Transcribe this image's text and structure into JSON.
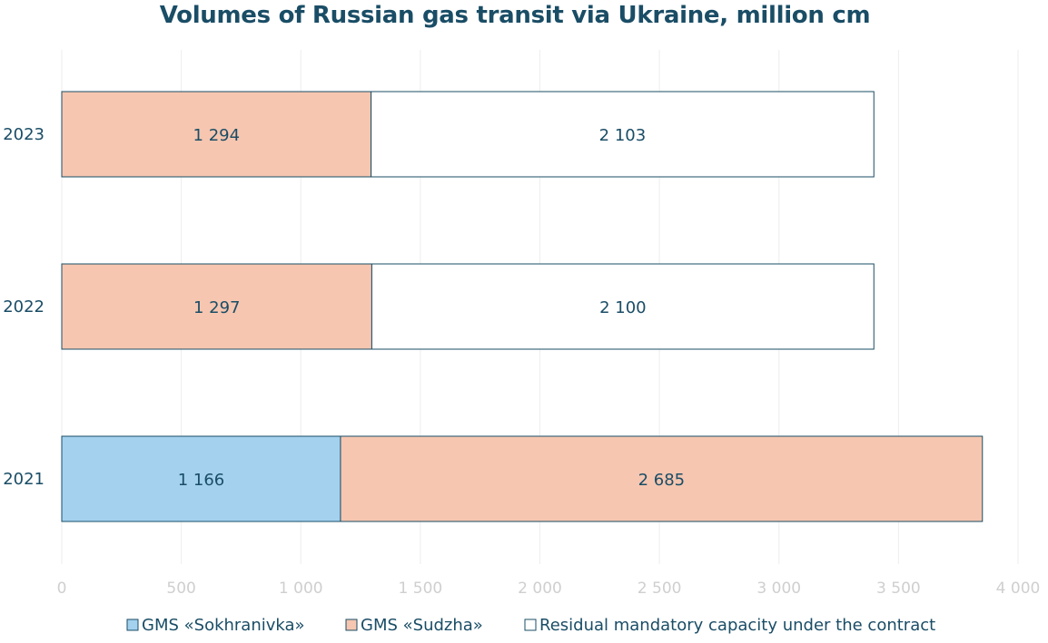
{
  "chart_data": {
    "type": "bar",
    "orientation": "horizontal",
    "stacked": true,
    "title": "Volumes of Russian gas transit via Ukraine, million cm",
    "categories": [
      "2023",
      "2022",
      "2021"
    ],
    "series": [
      {
        "name": "GMS «Sokhranivka»",
        "values": [
          0,
          0,
          1166
        ],
        "labels": [
          "",
          "",
          "1 166"
        ],
        "color": "#a3d1ee"
      },
      {
        "name": "GMS «Sudzha»",
        "values": [
          1294,
          1297,
          2685
        ],
        "labels": [
          "1 294",
          "1 297",
          "2 685"
        ],
        "color": "#f6c6b0"
      },
      {
        "name": "Residual mandatory capacity under the contract",
        "values": [
          2103,
          2100,
          0
        ],
        "labels": [
          "2 103",
          "2 100",
          ""
        ],
        "color": "#ffffff"
      }
    ],
    "xlim": [
      0,
      4000
    ],
    "x_ticks": [
      0,
      500,
      1000,
      1500,
      2000,
      2500,
      3000,
      3500,
      4000
    ],
    "x_tick_labels": [
      "0",
      "500",
      "1 000",
      "1 500",
      "2 000",
      "2 500",
      "3 000",
      "3 500",
      "4 000"
    ],
    "grid": true,
    "legend_position": "bottom",
    "bar_border_color": "#1a4d66",
    "text_color": "#1a4d66",
    "grid_color": "#eeeeee"
  }
}
